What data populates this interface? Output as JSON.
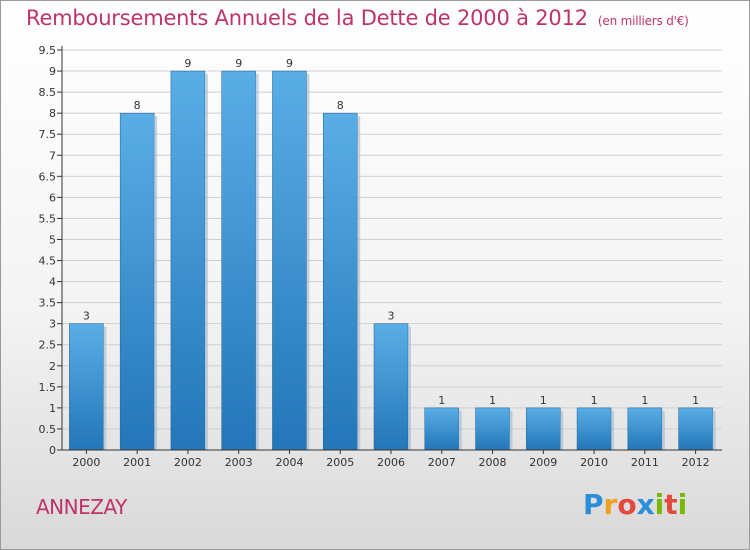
{
  "title": "Remboursements Annuels de la Dette de 2000 à 2012",
  "title_unit": "(en milliers d'€)",
  "location": "ANNEZAY",
  "logo": {
    "letters": [
      "P",
      "r",
      "o",
      "x",
      "i",
      "t",
      "i"
    ],
    "colors": [
      "#2a8fd8",
      "#f0a020",
      "#e24a3c",
      "#2a8fd8",
      "#7ab800",
      "#e24a3c",
      "#7ab800"
    ]
  },
  "colors": {
    "title": "#c0336a",
    "bar_top": "#5aaee6",
    "bar_bottom": "#2376b8",
    "axis": "#333333",
    "grid": "#d0d0d0"
  },
  "chart_data": {
    "type": "bar",
    "categories": [
      "2000",
      "2001",
      "2002",
      "2003",
      "2004",
      "2005",
      "2006",
      "2007",
      "2008",
      "2009",
      "2010",
      "2011",
      "2012"
    ],
    "values": [
      3,
      8,
      9,
      9,
      9,
      8,
      3,
      1,
      1,
      1,
      1,
      1,
      1
    ],
    "ylim": [
      0,
      9.5
    ],
    "yticks": [
      "0",
      "0.5",
      "1",
      "1.5",
      "2",
      "2.5",
      "3",
      "3.5",
      "4",
      "4.5",
      "5",
      "5.5",
      "6",
      "6.5",
      "7",
      "7.5",
      "8",
      "8.5",
      "9",
      "9.5"
    ],
    "grid": true,
    "legend": "none"
  }
}
